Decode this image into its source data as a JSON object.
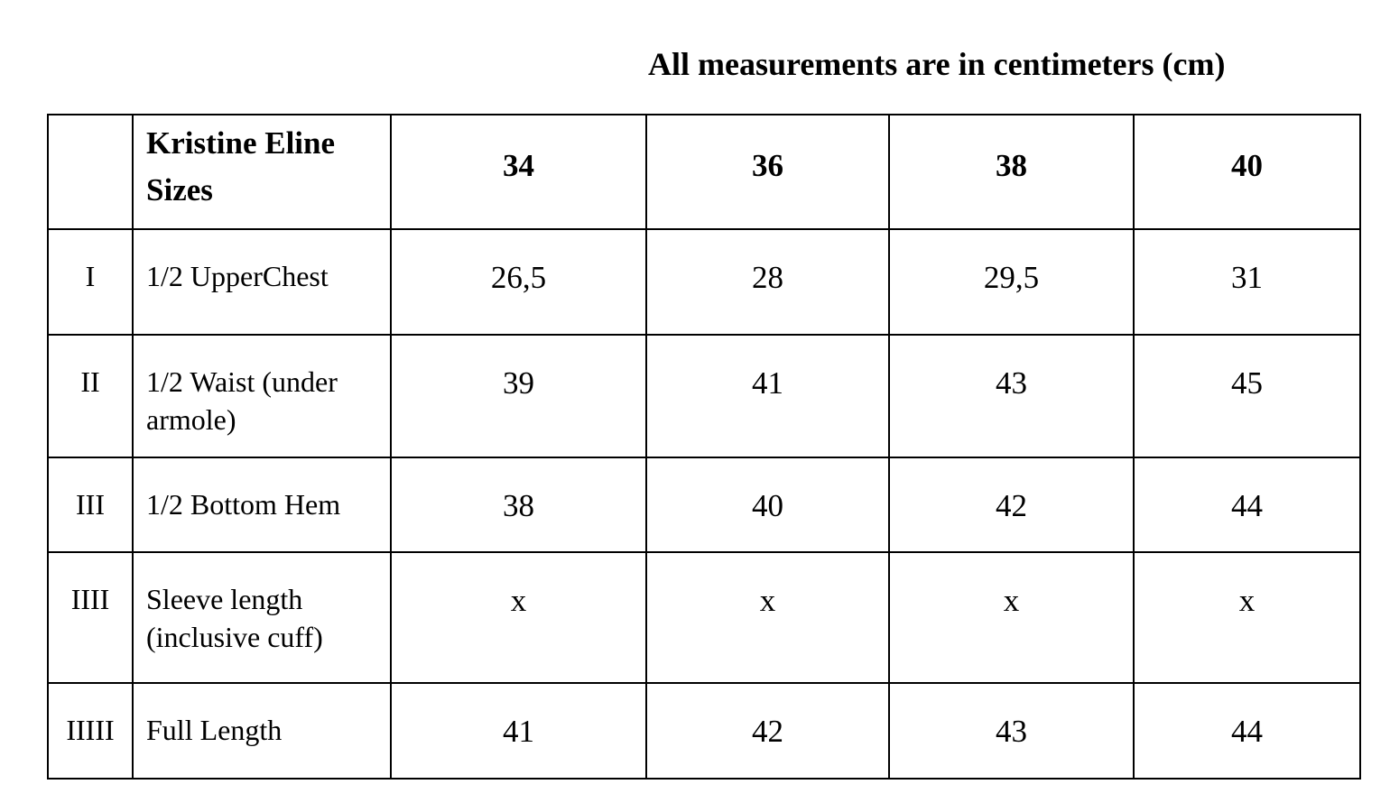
{
  "title": "All measurements are in centimeters (cm)",
  "table": {
    "header_label": "Kristine Eline Sizes",
    "sizes": [
      "34",
      "36",
      "38",
      "40"
    ],
    "rows": [
      {
        "index": "I",
        "label": "1/2 UpperChest",
        "values": [
          "26,5",
          "28",
          "29,5",
          "31"
        ]
      },
      {
        "index": "II",
        "label": "1/2 Waist (under armole)",
        "values": [
          "39",
          "41",
          "43",
          "45"
        ]
      },
      {
        "index": "III",
        "label": "1/2 Bottom Hem",
        "values": [
          "38",
          "40",
          "42",
          "44"
        ]
      },
      {
        "index": "IIII",
        "label": "Sleeve length (inclusive cuff)",
        "values": [
          "x",
          "x",
          "x",
          "x"
        ]
      },
      {
        "index": "IIIII",
        "label": "Full Length",
        "values": [
          "41",
          "42",
          "43",
          "44"
        ]
      }
    ]
  }
}
